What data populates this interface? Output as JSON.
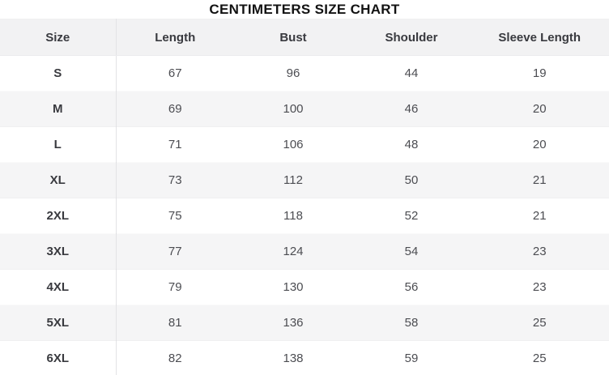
{
  "title": "CENTIMETERS SIZE CHART",
  "units": "centimeters",
  "colors": {
    "title_text": "#121212",
    "header_bg": "#f2f2f3",
    "row_bg": "#ffffff",
    "row_alt_bg": "#f5f5f6",
    "divider": "#e3e3e6",
    "header_text": "#393a3f",
    "value_text": "#4c4d52"
  },
  "table": {
    "columns": [
      "Size",
      "Length",
      "Bust",
      "Shoulder",
      "Sleeve Length"
    ],
    "column_keys": [
      "size",
      "length",
      "bust",
      "shoulder",
      "sleeve_length"
    ],
    "rows": [
      {
        "size": "S",
        "length": "67",
        "bust": "96",
        "shoulder": "44",
        "sleeve_length": "19"
      },
      {
        "size": "M",
        "length": "69",
        "bust": "100",
        "shoulder": "46",
        "sleeve_length": "20"
      },
      {
        "size": "L",
        "length": "71",
        "bust": "106",
        "shoulder": "48",
        "sleeve_length": "20"
      },
      {
        "size": "XL",
        "length": "73",
        "bust": "112",
        "shoulder": "50",
        "sleeve_length": "21"
      },
      {
        "size": "2XL",
        "length": "75",
        "bust": "118",
        "shoulder": "52",
        "sleeve_length": "21"
      },
      {
        "size": "3XL",
        "length": "77",
        "bust": "124",
        "shoulder": "54",
        "sleeve_length": "23"
      },
      {
        "size": "4XL",
        "length": "79",
        "bust": "130",
        "shoulder": "56",
        "sleeve_length": "23"
      },
      {
        "size": "5XL",
        "length": "81",
        "bust": "136",
        "shoulder": "58",
        "sleeve_length": "25"
      },
      {
        "size": "6XL",
        "length": "82",
        "bust": "138",
        "shoulder": "59",
        "sleeve_length": "25"
      }
    ]
  },
  "chart_data": {
    "type": "table",
    "title": "CENTIMETERS SIZE CHART",
    "columns": [
      "Size",
      "Length",
      "Bust",
      "Shoulder",
      "Sleeve Length"
    ],
    "rows": [
      [
        "S",
        67,
        96,
        44,
        19
      ],
      [
        "M",
        69,
        100,
        46,
        20
      ],
      [
        "L",
        71,
        106,
        48,
        20
      ],
      [
        "XL",
        73,
        112,
        50,
        21
      ],
      [
        "2XL",
        75,
        118,
        52,
        21
      ],
      [
        "3XL",
        77,
        124,
        54,
        23
      ],
      [
        "4XL",
        79,
        130,
        56,
        23
      ],
      [
        "5XL",
        81,
        136,
        58,
        25
      ],
      [
        "6XL",
        82,
        138,
        59,
        25
      ]
    ],
    "units": "centimeters",
    "layout": {
      "alternating_rows": true,
      "header_shaded": true,
      "size_column_divider": true
    }
  }
}
